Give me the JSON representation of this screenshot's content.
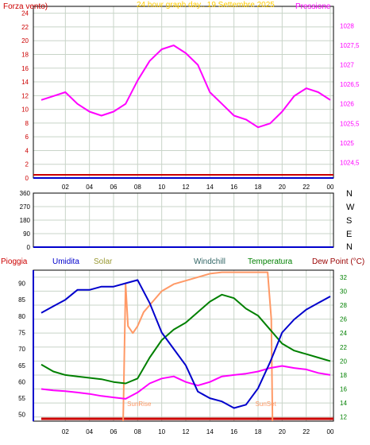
{
  "colors": {
    "background": "#ffffff",
    "grid": "#c8d4c8",
    "frame": "#000000",
    "red": "#cc0000",
    "blue": "#0000cc",
    "magenta": "#ff00ff",
    "green": "#008000",
    "orange": "#ff9966",
    "olive": "#999933",
    "teal": "#336666",
    "darkred": "#990000",
    "amber": "#ffcc00"
  },
  "chart_data": [
    {
      "type": "line",
      "title": "24 hour graph day.. 19 Settembre 2025",
      "left_label": "Forza vento)",
      "right_label": "Pressione",
      "x_ticks": [
        "02",
        "04",
        "06",
        "08",
        "10",
        "12",
        "14",
        "16",
        "18",
        "20",
        "22",
        "00"
      ],
      "y_left_ticks": [
        0,
        2,
        4,
        6,
        8,
        10,
        12,
        14,
        16,
        18,
        20,
        22,
        24
      ],
      "y_right_ticks": [
        "1024,5",
        "1025",
        "1025,5",
        "1026",
        "1026,5",
        "1027",
        "1027,5",
        "1028"
      ],
      "ylim_left": [
        0,
        25
      ],
      "ylim_right": [
        1024.1,
        1028.5
      ],
      "grid": true,
      "series": [
        {
          "name": "Pressione",
          "axis": "right",
          "color": "#ff00ff",
          "x": [
            0,
            1,
            2,
            3,
            4,
            5,
            6,
            7,
            8,
            9,
            10,
            11,
            12,
            13,
            14,
            15,
            16,
            17,
            18,
            19,
            20,
            21,
            22,
            23,
            24
          ],
          "y": [
            1026.1,
            1026.2,
            1026.3,
            1026.0,
            1025.8,
            1025.7,
            1025.8,
            1026.0,
            1026.6,
            1027.1,
            1027.4,
            1027.5,
            1027.3,
            1027.0,
            1026.3,
            1026.0,
            1025.7,
            1025.6,
            1025.4,
            1025.5,
            1025.8,
            1026.2,
            1026.4,
            1026.3,
            1026.1
          ]
        },
        {
          "name": "Forza vento",
          "axis": "left",
          "color": "#cc0000",
          "x": [
            0,
            24
          ],
          "y": [
            0.2,
            0.2
          ]
        }
      ]
    },
    {
      "type": "scatter",
      "y_ticks": [
        0,
        90,
        180,
        270,
        360
      ],
      "right_letters": [
        "N",
        "W",
        "S",
        "E",
        "N"
      ],
      "ylim": [
        0,
        360
      ],
      "x_ticks": [
        "02",
        "04",
        "06",
        "08",
        "10",
        "12",
        "14",
        "16",
        "18",
        "20",
        "22",
        "00"
      ],
      "grid": true,
      "series": []
    },
    {
      "type": "line",
      "legend": [
        "Pioggia",
        "Umidita",
        "Solar",
        "Windchill",
        "Temperatura",
        "Dew Point (°C)"
      ],
      "y_left_ticks": [
        50,
        55,
        60,
        65,
        70,
        75,
        80,
        85,
        90
      ],
      "y_right_ticks": [
        12,
        14,
        16,
        18,
        20,
        22,
        24,
        26,
        28,
        30,
        32
      ],
      "ylim_left": [
        48,
        94
      ],
      "ylim_right": [
        11.4,
        33
      ],
      "x_ticks": [
        "02",
        "04",
        "06",
        "08",
        "10",
        "12",
        "14",
        "16",
        "18",
        "20",
        "22",
        "00"
      ],
      "annotations": [
        "SunRise",
        "SunSet"
      ],
      "grid": true,
      "series": [
        {
          "name": "Umidita",
          "axis": "left",
          "color": "#0000cc",
          "x": [
            0,
            1,
            2,
            3,
            4,
            5,
            6,
            7,
            8,
            9,
            10,
            11,
            12,
            13,
            14,
            15,
            16,
            17,
            18,
            19,
            20,
            21,
            22,
            23,
            24
          ],
          "y": [
            81,
            83,
            85,
            88,
            88,
            89,
            89,
            90,
            91,
            84,
            75,
            70,
            65,
            57,
            55,
            54,
            52,
            53,
            58,
            66,
            75,
            79,
            82,
            84,
            86
          ]
        },
        {
          "name": "Temperatura",
          "axis": "right",
          "color": "#008000",
          "x": [
            0,
            1,
            2,
            3,
            4,
            5,
            6,
            7,
            8,
            9,
            10,
            11,
            12,
            13,
            14,
            15,
            16,
            17,
            18,
            19,
            20,
            21,
            22,
            23,
            24
          ],
          "y": [
            19.5,
            18.5,
            18.0,
            17.8,
            17.6,
            17.4,
            17.0,
            16.8,
            17.5,
            20.5,
            23.0,
            24.5,
            25.5,
            27.0,
            28.5,
            29.5,
            29.0,
            27.5,
            26.5,
            24.5,
            22.5,
            21.5,
            21.0,
            20.5,
            20.0
          ]
        },
        {
          "name": "Dew Point (°C)",
          "axis": "right",
          "color": "#ff00ff",
          "x": [
            0,
            1,
            2,
            3,
            4,
            5,
            6,
            7,
            8,
            9,
            10,
            11,
            12,
            13,
            14,
            15,
            16,
            17,
            18,
            19,
            20,
            21,
            22,
            23,
            24
          ],
          "y": [
            16.0,
            15.8,
            15.7,
            15.5,
            15.3,
            15.0,
            14.8,
            14.6,
            15.5,
            16.8,
            17.5,
            17.8,
            17.0,
            16.5,
            17.0,
            17.8,
            18.0,
            18.2,
            18.5,
            19.0,
            19.3,
            19.0,
            18.8,
            18.3,
            18.0
          ]
        },
        {
          "name": "Solar",
          "axis": "right",
          "color": "#ff9966",
          "x": [
            6.8,
            7.0,
            7.2,
            7.6,
            8.0,
            8.5,
            9.0,
            10,
            11,
            12,
            13,
            14,
            15,
            16,
            17,
            18,
            18.8,
            19.1,
            19.2
          ],
          "y": [
            11.4,
            31,
            25,
            24,
            25,
            27,
            28,
            30,
            31,
            31.5,
            32,
            32.5,
            32.7,
            32.7,
            32.7,
            32.7,
            32.7,
            26,
            11.4
          ]
        },
        {
          "name": "Pioggia",
          "axis": "left",
          "color": "#cc0000",
          "x": [
            0,
            24
          ],
          "y": [
            48.3,
            48.3
          ]
        }
      ]
    }
  ]
}
